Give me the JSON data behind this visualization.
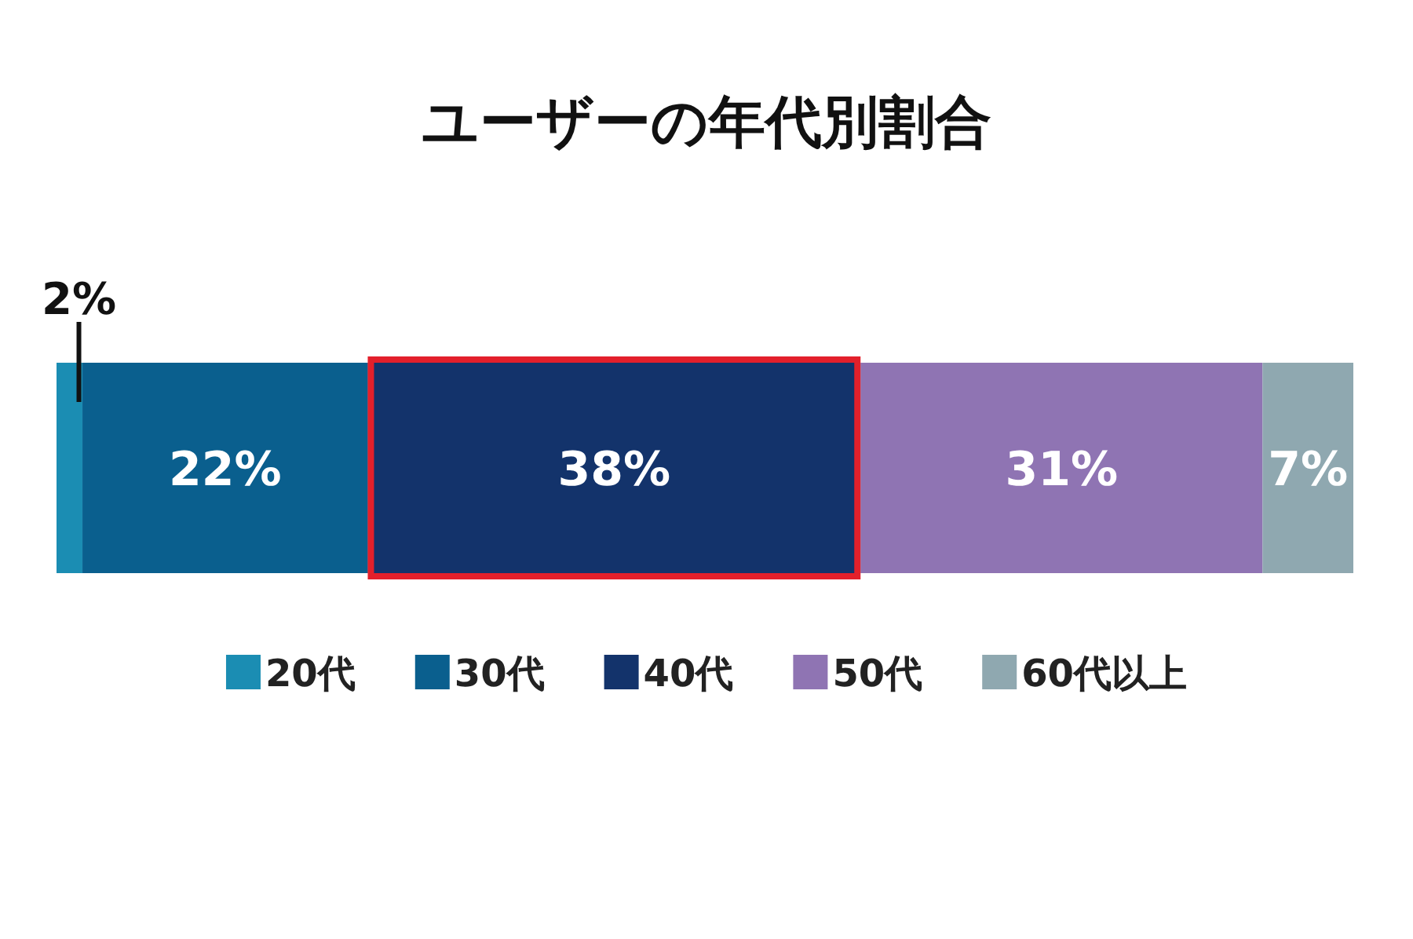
{
  "chart_data": {
    "type": "bar",
    "title": "ユーザーの年代別割合",
    "stacked": true,
    "orientation": "horizontal",
    "categories": [
      null
    ],
    "tick_labels": false,
    "legend": "bottom",
    "series": [
      {
        "name": "20代",
        "color": "#1b8db3",
        "values": [
          2
        ],
        "value_labels": [
          "2%"
        ]
      },
      {
        "name": "30代",
        "color": "#0a5f8e",
        "values": [
          22
        ],
        "value_labels": [
          "22%"
        ]
      },
      {
        "name": "40代",
        "color": "#13336b",
        "values": [
          38
        ],
        "value_labels": [
          "38%"
        ]
      },
      {
        "name": "50代",
        "color": "#8f74b3",
        "values": [
          31
        ],
        "value_labels": [
          "31%"
        ]
      },
      {
        "name": "60代以上",
        "color": "#8fa8b0",
        "values": [
          7
        ],
        "value_labels": [
          "7%"
        ]
      }
    ]
  }
}
